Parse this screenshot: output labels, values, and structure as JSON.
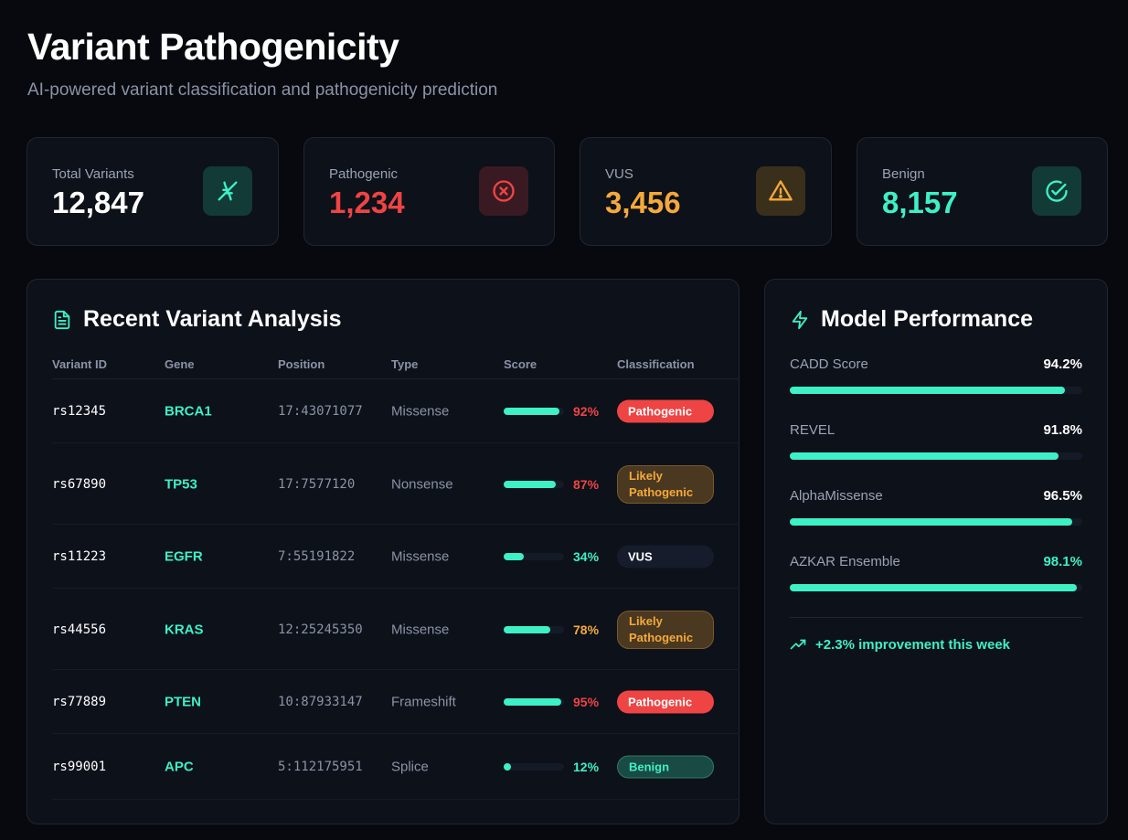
{
  "header": {
    "title": "Variant Pathogenicity",
    "subtitle": "AI-powered variant classification and pathogenicity prediction"
  },
  "stats": [
    {
      "label": "Total Variants",
      "value": "12,847",
      "color": "#ffffff",
      "icon": "dna-icon",
      "icon_bg": "#123a36"
    },
    {
      "label": "Pathogenic",
      "value": "1,234",
      "color": "#ef4444",
      "icon": "x-circle-icon",
      "icon_bg": "#3a1a22"
    },
    {
      "label": "VUS",
      "value": "3,456",
      "color": "#f5a93a",
      "icon": "warning-triangle-icon",
      "icon_bg": "#3a2f1a"
    },
    {
      "label": "Benign",
      "value": "8,157",
      "color": "#3ef0c6",
      "icon": "check-circle-icon",
      "icon_bg": "#123a36"
    }
  ],
  "variants_panel": {
    "title": "Recent Variant Analysis",
    "columns": [
      "Variant ID",
      "Gene",
      "Position",
      "Type",
      "Score",
      "Classification"
    ],
    "rows": [
      {
        "id": "rs12345",
        "gene": "BRCA1",
        "position": "17:43071077",
        "type": "Missense",
        "score": 0.92,
        "score_label": "92%",
        "score_color": "#ef4444",
        "classification": "Pathogenic",
        "badge": "path"
      },
      {
        "id": "rs67890",
        "gene": "TP53",
        "position": "17:7577120",
        "type": "Nonsense",
        "score": 0.87,
        "score_label": "87%",
        "score_color": "#ef4444",
        "classification": "Likely Pathogenic",
        "badge": "likely"
      },
      {
        "id": "rs11223",
        "gene": "EGFR",
        "position": "7:55191822",
        "type": "Missense",
        "score": 0.34,
        "score_label": "34%",
        "score_color": "#3ef0c6",
        "classification": "VUS",
        "badge": "vus"
      },
      {
        "id": "rs44556",
        "gene": "KRAS",
        "position": "12:25245350",
        "type": "Missense",
        "score": 0.78,
        "score_label": "78%",
        "score_color": "#f5a93a",
        "classification": "Likely Pathogenic",
        "badge": "likely"
      },
      {
        "id": "rs77889",
        "gene": "PTEN",
        "position": "10:87933147",
        "type": "Frameshift",
        "score": 0.95,
        "score_label": "95%",
        "score_color": "#ef4444",
        "classification": "Pathogenic",
        "badge": "path"
      },
      {
        "id": "rs99001",
        "gene": "APC",
        "position": "5:112175951",
        "type": "Splice",
        "score": 0.12,
        "score_label": "12%",
        "score_color": "#3ef0c6",
        "classification": "Benign",
        "badge": "benign"
      }
    ]
  },
  "performance_panel": {
    "title": "Model Performance",
    "metrics": [
      {
        "name": "CADD Score",
        "value_label": "94.2%",
        "value": 0.942,
        "value_color": "#ffffff"
      },
      {
        "name": "REVEL",
        "value_label": "91.8%",
        "value": 0.918,
        "value_color": "#ffffff"
      },
      {
        "name": "AlphaMissense",
        "value_label": "96.5%",
        "value": 0.965,
        "value_color": "#ffffff"
      },
      {
        "name": "AZKAR Ensemble",
        "value_label": "98.1%",
        "value": 0.981,
        "value_color": "#3ef0c6"
      }
    ],
    "improvement": "+2.3% improvement this week"
  },
  "colors": {
    "accent": "#3ef0c6",
    "danger": "#ef4444",
    "warning": "#f5a93a",
    "background": "#07090e",
    "card": "#0d111a"
  }
}
